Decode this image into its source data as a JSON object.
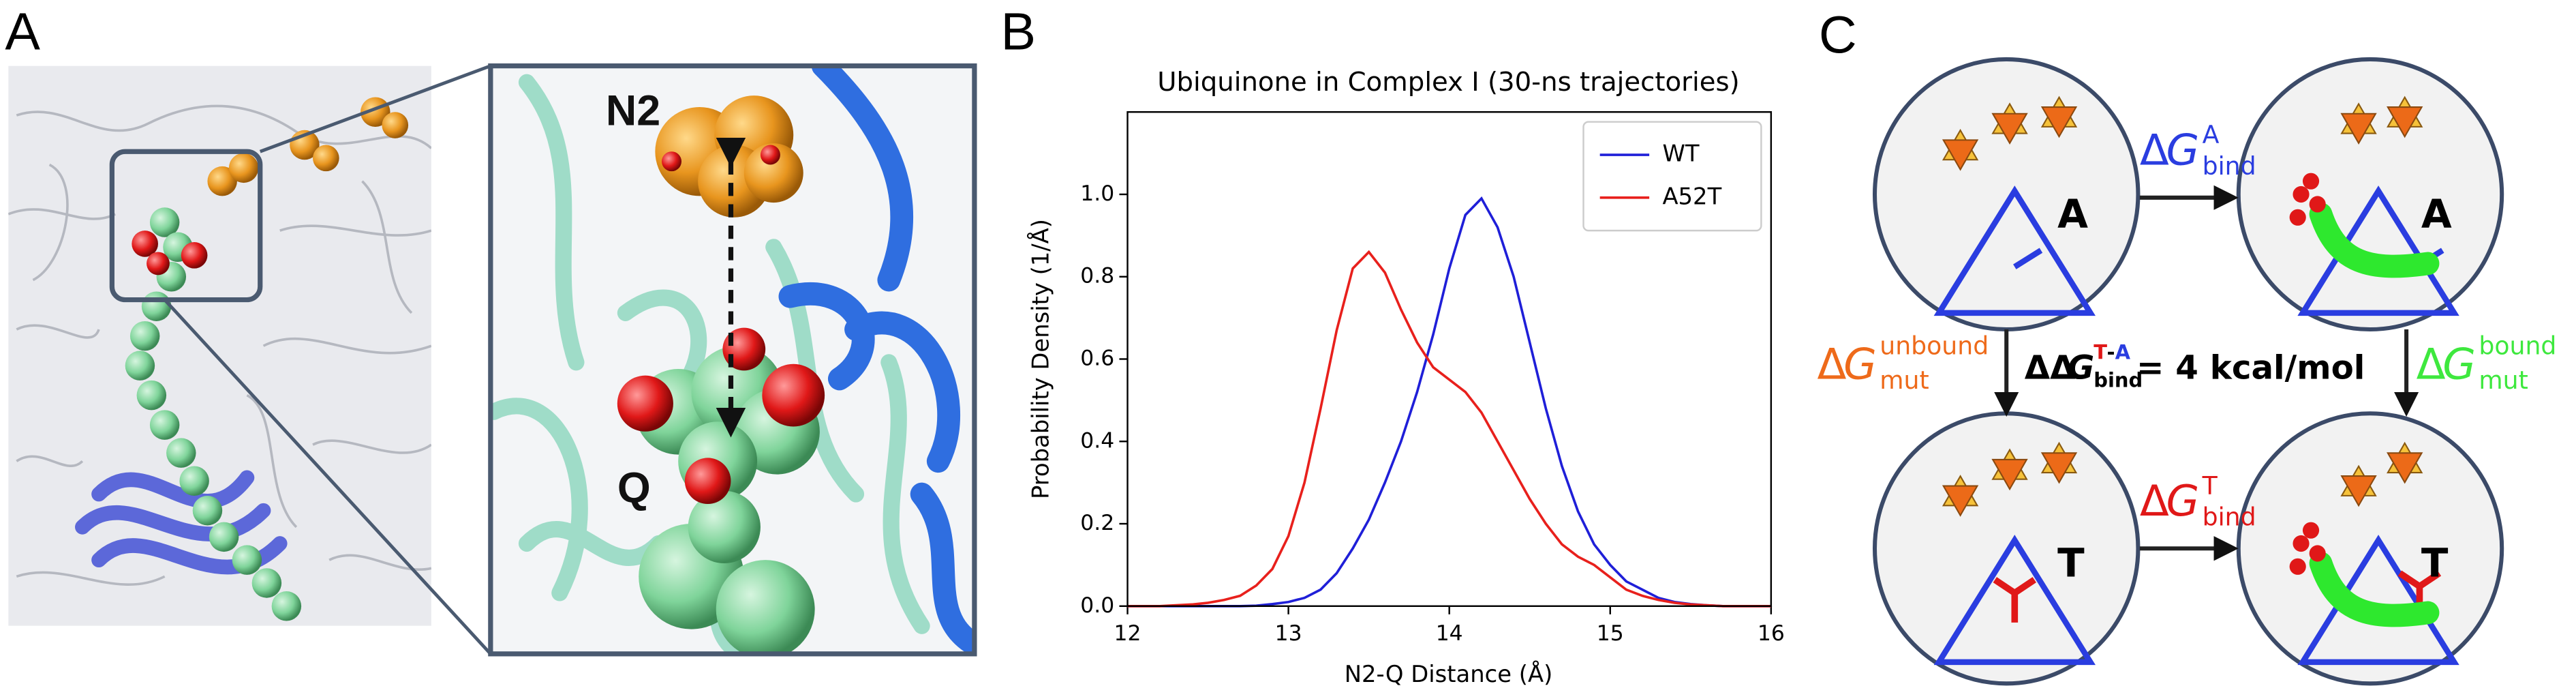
{
  "panel_a": {
    "label": "A",
    "labels": [
      "N2",
      "Q"
    ]
  },
  "chart_data": {
    "type": "line",
    "panel_label": "B",
    "title": "Ubiquinone in Complex I (30-ns trajectories)",
    "x_label": "N2-Q Distance (Å)",
    "y_label": "Probability Density (1/Å)",
    "x": [
      12.0,
      12.1,
      12.2,
      12.3,
      12.4,
      12.5,
      12.6,
      12.7,
      12.8,
      12.9,
      13.0,
      13.1,
      13.2,
      13.3,
      13.4,
      13.5,
      13.6,
      13.7,
      13.8,
      13.9,
      14.0,
      14.1,
      14.2,
      14.3,
      14.4,
      14.5,
      14.6,
      14.7,
      14.8,
      14.9,
      15.0,
      15.1,
      15.2,
      15.3,
      15.4,
      15.5,
      15.6,
      15.7,
      15.8,
      15.9,
      16.0
    ],
    "series": [
      {
        "name": "WT",
        "color": "#1f1fd8",
        "values": [
          0,
          0,
          0,
          0,
          0,
          0,
          0,
          0,
          0.001,
          0.005,
          0.01,
          0.02,
          0.04,
          0.08,
          0.14,
          0.21,
          0.3,
          0.4,
          0.52,
          0.66,
          0.82,
          0.95,
          0.99,
          0.92,
          0.8,
          0.64,
          0.48,
          0.34,
          0.23,
          0.15,
          0.1,
          0.06,
          0.04,
          0.02,
          0.01,
          0.005,
          0.002,
          0,
          0,
          0,
          0
        ]
      },
      {
        "name": "A52T",
        "color": "#e8201c",
        "values": [
          0,
          0,
          0,
          0.002,
          0.004,
          0.008,
          0.015,
          0.025,
          0.05,
          0.09,
          0.17,
          0.3,
          0.48,
          0.67,
          0.82,
          0.86,
          0.81,
          0.72,
          0.64,
          0.58,
          0.55,
          0.52,
          0.47,
          0.4,
          0.33,
          0.26,
          0.2,
          0.15,
          0.12,
          0.1,
          0.07,
          0.04,
          0.025,
          0.015,
          0.008,
          0.004,
          0.002,
          0,
          0,
          0,
          0
        ]
      }
    ],
    "xlim": [
      12,
      16
    ],
    "xticks": [
      12,
      13,
      14,
      15,
      16
    ],
    "ylim": [
      0,
      1.2
    ],
    "yticks": [
      {
        "value": 0,
        "label": "0.0"
      },
      0.2,
      0.4,
      0.6,
      0.8,
      {
        "value": 1,
        "label": "1.0"
      }
    ],
    "legend": "upper right",
    "grid": false
  },
  "panel_c": {
    "label": "C",
    "nodes": [
      {
        "label": "A"
      },
      {
        "label": "A"
      },
      {
        "label": "T"
      },
      {
        "label": "T"
      }
    ],
    "edges": [
      {
        "delta": "Δ",
        "var": "G",
        "sup": "A",
        "sub": "bind"
      },
      {
        "delta": "Δ",
        "var": "G",
        "sup": "T",
        "sub": "bind"
      },
      {
        "delta": "Δ",
        "var": "G",
        "sup": "unbound",
        "sub": "mut"
      },
      {
        "delta": "Δ",
        "var": "G",
        "sup": "bound",
        "sub": "mut"
      }
    ],
    "center": {
      "delta": "ΔΔ",
      "var": "G",
      "sub": "bind",
      "sup": [
        "T",
        "-",
        "A"
      ],
      "text": "= 4 kcal/mol"
    }
  }
}
